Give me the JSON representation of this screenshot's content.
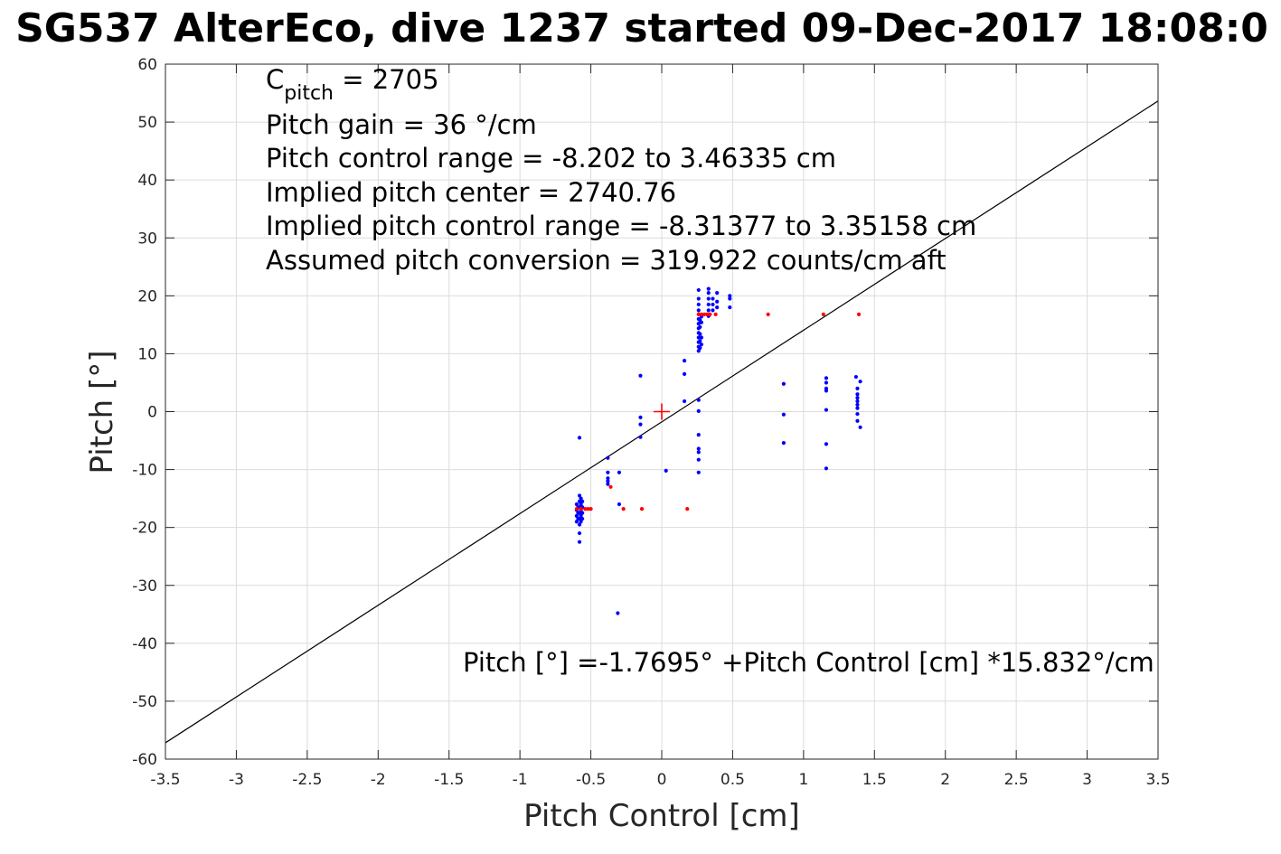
{
  "chart_data": {
    "type": "scatter",
    "title": "SG537 AlterEco, dive 1237 started 09-Dec-2017 18:08:0",
    "xlabel": "Pitch Control [cm]",
    "ylabel": "Pitch [°]",
    "xlim": [
      -3.5,
      3.5
    ],
    "ylim": [
      -60,
      60
    ],
    "xticks": [
      -3.5,
      -3,
      -2.5,
      -2,
      -1.5,
      -1,
      -0.5,
      0,
      0.5,
      1,
      1.5,
      2,
      2.5,
      3,
      3.5
    ],
    "xtick_labels": [
      "-3.5",
      "-3",
      "-2.5",
      "-2",
      "-1.5",
      "-1",
      "-0.5",
      "0",
      "0.5",
      "1",
      "1.5",
      "2",
      "2.5",
      "3",
      "3.5"
    ],
    "yticks": [
      -60,
      -50,
      -40,
      -30,
      -20,
      -10,
      0,
      10,
      20,
      30,
      40,
      50,
      60
    ],
    "ytick_labels": [
      "-60",
      "-50",
      "-40",
      "-30",
      "-20",
      "-10",
      "0",
      "10",
      "20",
      "30",
      "40",
      "50",
      "60"
    ],
    "grid": true,
    "annotations": {
      "c_pitch_prefix": "C",
      "c_pitch_subscript": "pitch",
      "c_pitch_suffix": " = 2705",
      "lines": [
        "Pitch gain = 36 °/cm",
        "Pitch control range = -8.202 to 3.46335 cm",
        "Implied pitch center = 2740.76",
        "Implied pitch control range = -8.31377 to 3.35158 cm",
        "Assumed pitch conversion = 319.922 counts/cm aft"
      ],
      "fit_equation": "Pitch [°] =-1.7695° +Pitch Control [cm] *15.832°/cm"
    },
    "fit_line": {
      "intercept": -1.7695,
      "slope": 15.832,
      "color": "#000000"
    },
    "center_marker": {
      "x": 0,
      "y": 0,
      "color": "#ff0000"
    },
    "series": [
      {
        "color": "#0000ff",
        "points": [
          [
            -0.58,
            -4.5
          ],
          [
            -0.6,
            -16
          ],
          [
            -0.6,
            -17
          ],
          [
            -0.6,
            -18
          ],
          [
            -0.6,
            -19
          ],
          [
            -0.59,
            -16.5
          ],
          [
            -0.59,
            -17.5
          ],
          [
            -0.59,
            -18.5
          ],
          [
            -0.58,
            -14.5
          ],
          [
            -0.58,
            -15.5
          ],
          [
            -0.58,
            -16.5
          ],
          [
            -0.58,
            -17.5
          ],
          [
            -0.58,
            -18.5
          ],
          [
            -0.58,
            -19.5
          ],
          [
            -0.57,
            -15
          ],
          [
            -0.57,
            -16
          ],
          [
            -0.57,
            -17
          ],
          [
            -0.57,
            -18
          ],
          [
            -0.57,
            -19
          ],
          [
            -0.56,
            -15.5
          ],
          [
            -0.56,
            -16.5
          ],
          [
            -0.56,
            -17.5
          ],
          [
            -0.56,
            -18.5
          ],
          [
            -0.58,
            -21
          ],
          [
            -0.58,
            -22.5
          ],
          [
            -0.38,
            -8
          ],
          [
            -0.38,
            -10.5
          ],
          [
            -0.38,
            -11.5
          ],
          [
            -0.38,
            -12
          ],
          [
            -0.38,
            -12.5
          ],
          [
            -0.3,
            -10.5
          ],
          [
            -0.3,
            -16
          ],
          [
            -0.31,
            -34.8
          ],
          [
            -0.15,
            6.2
          ],
          [
            -0.15,
            -1
          ],
          [
            -0.15,
            -2.2
          ],
          [
            -0.15,
            -4.4
          ],
          [
            0.03,
            -10.2
          ],
          [
            0.16,
            8.8
          ],
          [
            0.16,
            6.5
          ],
          [
            0.16,
            1.8
          ],
          [
            0.26,
            2
          ],
          [
            0.26,
            0.1
          ],
          [
            0.26,
            -4
          ],
          [
            0.26,
            -6.4
          ],
          [
            0.26,
            -7
          ],
          [
            0.26,
            -8.3
          ],
          [
            0.26,
            -10.5
          ],
          [
            0.26,
            10.5
          ],
          [
            0.26,
            11.2
          ],
          [
            0.26,
            12
          ],
          [
            0.26,
            12.8
          ],
          [
            0.26,
            13.6
          ],
          [
            0.26,
            14.4
          ],
          [
            0.26,
            15.2
          ],
          [
            0.26,
            16
          ],
          [
            0.26,
            17.5
          ],
          [
            0.26,
            18.5
          ],
          [
            0.26,
            19.5
          ],
          [
            0.26,
            21
          ],
          [
            0.27,
            11
          ],
          [
            0.27,
            12.2
          ],
          [
            0.27,
            13.4
          ],
          [
            0.27,
            14.6
          ],
          [
            0.27,
            15.8
          ],
          [
            0.28,
            11.6
          ],
          [
            0.28,
            12.8
          ],
          [
            0.28,
            15.4
          ],
          [
            0.28,
            16.4
          ],
          [
            0.33,
            16.5
          ],
          [
            0.33,
            17.5
          ],
          [
            0.33,
            18.5
          ],
          [
            0.33,
            19.5
          ],
          [
            0.33,
            20.5
          ],
          [
            0.33,
            21.2
          ],
          [
            0.36,
            17.5
          ],
          [
            0.36,
            18.5
          ],
          [
            0.36,
            19.5
          ],
          [
            0.39,
            18
          ],
          [
            0.39,
            19
          ],
          [
            0.39,
            20.5
          ],
          [
            0.48,
            18
          ],
          [
            0.48,
            19.5
          ],
          [
            0.48,
            20
          ],
          [
            0.86,
            4.8
          ],
          [
            0.86,
            -0.5
          ],
          [
            0.86,
            -5.4
          ],
          [
            1.16,
            5.8
          ],
          [
            1.16,
            5
          ],
          [
            1.16,
            4
          ],
          [
            1.16,
            3.6
          ],
          [
            1.16,
            0.3
          ],
          [
            1.16,
            -5.6
          ],
          [
            1.16,
            -9.8
          ],
          [
            1.37,
            6
          ],
          [
            1.38,
            4
          ],
          [
            1.38,
            3
          ],
          [
            1.38,
            2.4
          ],
          [
            1.38,
            1.8
          ],
          [
            1.38,
            1.2
          ],
          [
            1.38,
            0.6
          ],
          [
            1.38,
            -0.4
          ],
          [
            1.38,
            -1.6
          ],
          [
            1.4,
            5.2
          ],
          [
            1.4,
            -2.7
          ]
        ]
      },
      {
        "color": "#ff0000",
        "points": [
          [
            -0.6,
            -16.8
          ],
          [
            -0.57,
            -16.8
          ],
          [
            -0.54,
            -16.8
          ],
          [
            -0.52,
            -16.8
          ],
          [
            -0.5,
            -16.8
          ],
          [
            -0.36,
            -13
          ],
          [
            -0.27,
            -16.8
          ],
          [
            -0.14,
            -16.8
          ],
          [
            0.18,
            -16.8
          ],
          [
            0.26,
            16.8
          ],
          [
            0.28,
            16.8
          ],
          [
            0.3,
            16.8
          ],
          [
            0.32,
            16.8
          ],
          [
            0.34,
            16.8
          ],
          [
            0.38,
            16.8
          ],
          [
            0.75,
            16.8
          ],
          [
            1.14,
            16.8
          ],
          [
            1.39,
            16.8
          ]
        ]
      }
    ]
  }
}
